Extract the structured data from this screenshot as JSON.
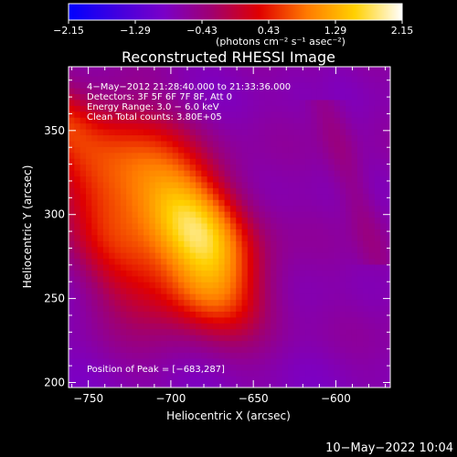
{
  "chart_data": {
    "type": "heatmap",
    "title": "Reconstructed RHESSI Image",
    "xlabel": "Heliocentric X (arcsec)",
    "ylabel": "Heliocentric Y (arcsec)",
    "xlim": [
      -762,
      -567
    ],
    "ylim": [
      197,
      388
    ],
    "x_ticks": [
      -750,
      -700,
      -650,
      -600
    ],
    "x_tick_labels": [
      "−750",
      "−700",
      "−650",
      "−600"
    ],
    "y_ticks": [
      200,
      250,
      300,
      350
    ],
    "y_tick_labels": [
      "200",
      "250",
      "300",
      "350"
    ],
    "colorbar": {
      "range": [
        -2.15,
        2.15
      ],
      "ticks": [
        -2.15,
        -1.29,
        -0.43,
        0.43,
        1.29,
        2.15
      ],
      "tick_labels": [
        "−2.15",
        "−1.29",
        "−0.43",
        "0.43",
        "1.29",
        "2.15"
      ],
      "units_label": "(photons cm⁻² s⁻¹ asec⁻²)",
      "colors": [
        "#0000ff",
        "#4000e0",
        "#7a00c8",
        "#a00070",
        "#e00000",
        "#ff7a00",
        "#ffd000",
        "#ffffff"
      ]
    },
    "annotations": {
      "time_range": "4−May−2012 21:28:40.000 to 21:33:36.000",
      "detectors": "Detectors: 3F 5F 6F 7F 8F, Att 0",
      "energy": "Energy Range: 3.0 − 6.0 keV",
      "clean": "Clean    Total counts: 3.80E+05",
      "peak": "Position of Peak = [−683,287]"
    },
    "peak": {
      "x": -683,
      "y": 287,
      "value": 2.15
    },
    "sources": [
      {
        "x": -683,
        "y": 287,
        "sx": 22,
        "sy": 28,
        "amp": 2.1
      },
      {
        "x": -715,
        "y": 330,
        "sx": 32,
        "sy": 28,
        "amp": 1.3
      },
      {
        "x": -735,
        "y": 275,
        "sx": 20,
        "sy": 30,
        "amp": 0.9
      },
      {
        "x": -695,
        "y": 250,
        "sx": 22,
        "sy": 16,
        "amp": 0.8
      },
      {
        "x": -745,
        "y": 360,
        "sx": 14,
        "sy": 14,
        "amp": 0.7
      }
    ]
  },
  "footer": {
    "date": "10−May−2022 10:04"
  }
}
